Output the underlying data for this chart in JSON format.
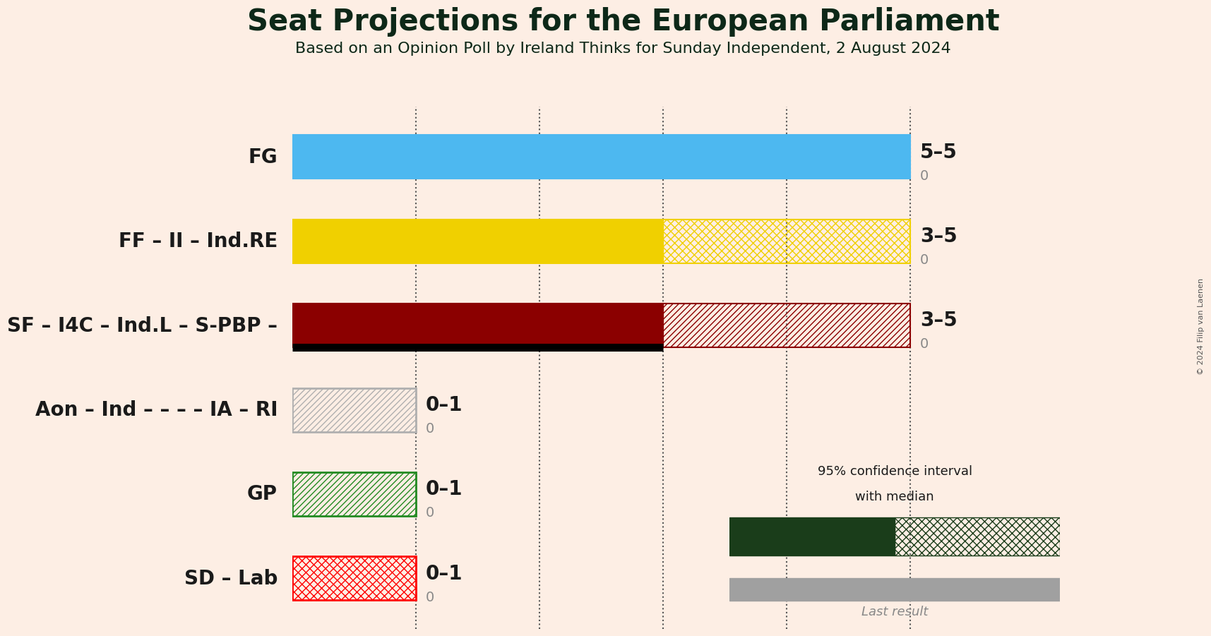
{
  "title": "Seat Projections for the European Parliament",
  "subtitle": "Based on an Opinion Poll by Ireland Thinks for Sunday Independent, 2 August 2024",
  "copyright": "© 2024 Filip van Laenen",
  "background_color": "#fdeee4",
  "parties": [
    {
      "name": "FG",
      "median": 5,
      "low": 5,
      "high": 5,
      "last_result": 0,
      "color": "#4db8f0",
      "ci_hatch": null,
      "bar_hatch": null,
      "has_black_line": false
    },
    {
      "name": "FF – II – Ind.RE",
      "median": 3,
      "low": 3,
      "high": 5,
      "last_result": 0,
      "color": "#f0d000",
      "ci_hatch": "xxx",
      "bar_hatch": null,
      "has_black_line": false
    },
    {
      "name": "SF – I4C – Ind.L – S-PBP –",
      "median": 3,
      "low": 3,
      "high": 5,
      "last_result": 0,
      "color": "#8b0000",
      "ci_hatch": "////",
      "bar_hatch": null,
      "has_black_line": true
    },
    {
      "name": "Aon – Ind – – – – IA – RI",
      "median": 0,
      "low": 0,
      "high": 1,
      "last_result": 0,
      "color": "#b0b0b0",
      "ci_hatch": "////",
      "bar_hatch": "////",
      "has_black_line": false
    },
    {
      "name": "GP",
      "median": 0,
      "low": 0,
      "high": 1,
      "last_result": 0,
      "color": "#228B22",
      "ci_hatch": "////",
      "bar_hatch": "////",
      "has_black_line": false
    },
    {
      "name": "SD – Lab",
      "median": 0,
      "low": 0,
      "high": 1,
      "last_result": 0,
      "color": "#ff0000",
      "ci_hatch": "xxx",
      "bar_hatch": "xxx",
      "has_black_line": false
    }
  ],
  "x_max": 6,
  "dotted_lines": [
    1,
    2,
    3,
    4,
    5
  ],
  "label_fontsize": 20,
  "title_fontsize": 30,
  "subtitle_fontsize": 16,
  "party_name_fontsize": 20,
  "range_label_fontsize": 20,
  "last_result_fontsize": 14
}
